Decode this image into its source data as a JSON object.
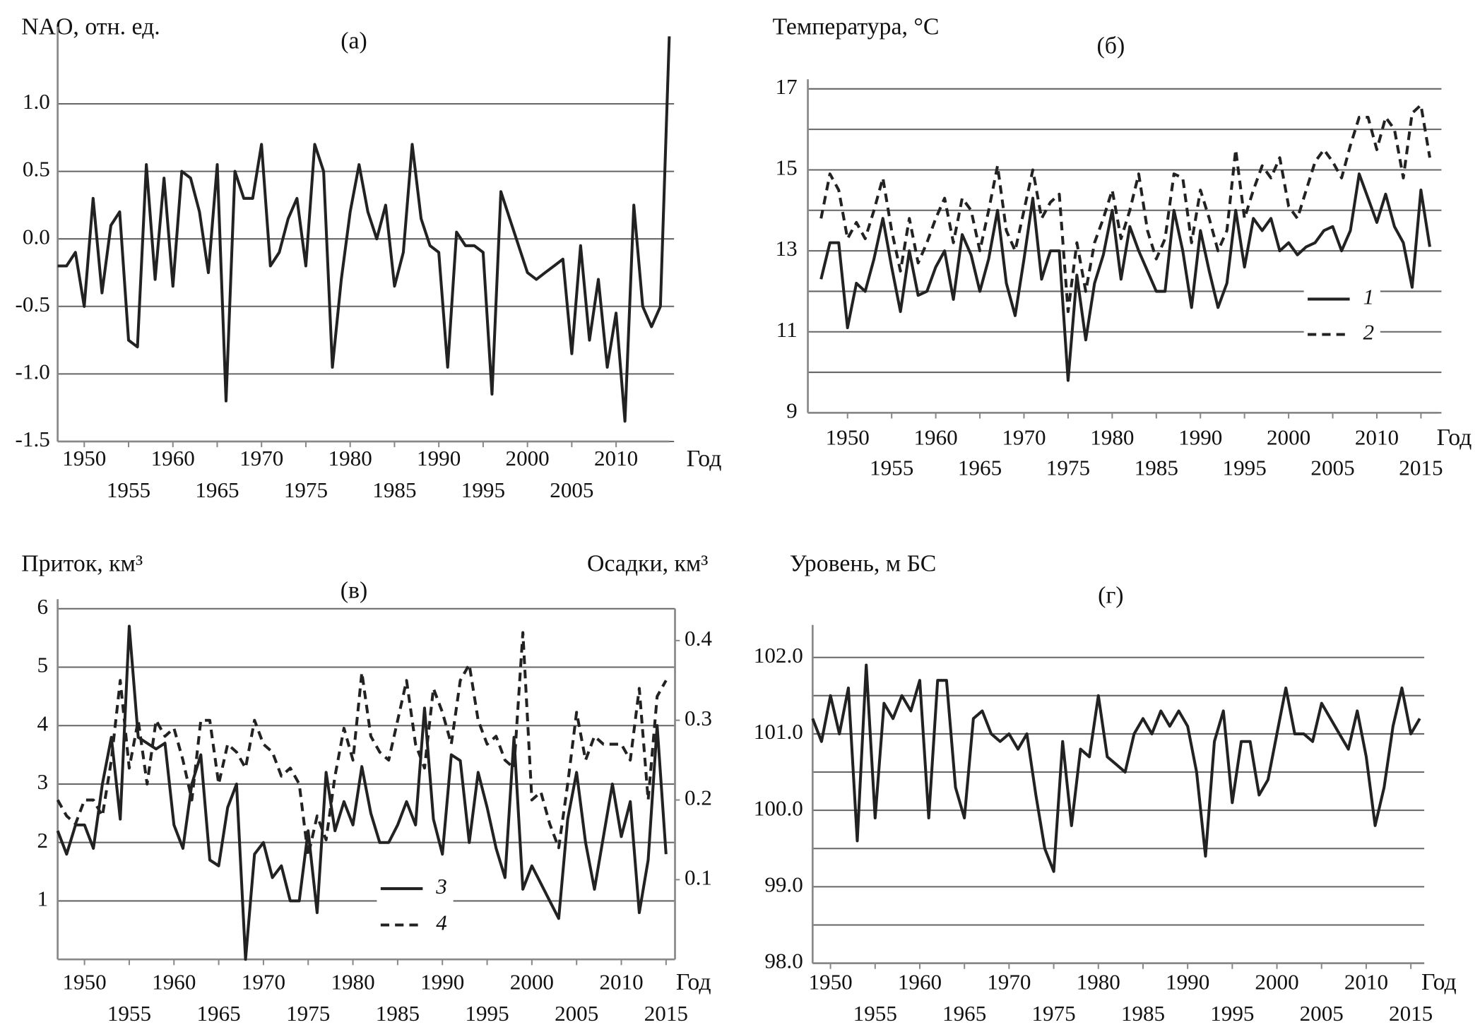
{
  "chart_data": [
    {
      "type": "line",
      "title": "(а)",
      "ylabel": "NAO, отн. ед.",
      "xlabel": "Год",
      "grid": true,
      "xlim": [
        1947,
        2016
      ],
      "xticks": [
        1950,
        1955,
        1960,
        1965,
        1970,
        1975,
        1980,
        1985,
        1990,
        1995,
        2000,
        2005,
        2010
      ],
      "ylim": [
        -1.5,
        1.5
      ],
      "yticks": [
        {
          "value": -1.5,
          "label": "-1.5"
        },
        {
          "value": -1.0,
          "label": "-1.0"
        },
        {
          "value": -0.5,
          "label": "-0.5"
        },
        {
          "value": 0.0,
          "label": "0.0"
        },
        {
          "value": 0.5,
          "label": "0.5"
        },
        {
          "value": 1.0,
          "label": "1.0"
        }
      ],
      "x": [
        1947,
        1948,
        1949,
        1950,
        1951,
        1952,
        1953,
        1954,
        1955,
        1956,
        1957,
        1958,
        1959,
        1960,
        1961,
        1962,
        1963,
        1964,
        1965,
        1966,
        1967,
        1968,
        1969,
        1970,
        1971,
        1972,
        1973,
        1974,
        1975,
        1976,
        1977,
        1978,
        1979,
        1980,
        1981,
        1982,
        1983,
        1984,
        1985,
        1986,
        1987,
        1988,
        1989,
        1990,
        1991,
        1992,
        1993,
        1994,
        1995,
        1996,
        1997,
        1998,
        1999,
        2000,
        2001,
        2002,
        2003,
        2004,
        2005,
        2006,
        2007,
        2008,
        2009,
        2010,
        2011,
        2012,
        2013,
        2014,
        2015,
        2016
      ],
      "series": [
        {
          "color": "#222222",
          "dash": false,
          "values": [
            -0.2,
            -0.2,
            -0.1,
            -0.5,
            0.3,
            -0.4,
            0.1,
            0.2,
            -0.75,
            -0.8,
            0.55,
            -0.3,
            0.45,
            -0.35,
            0.5,
            0.45,
            0.2,
            -0.25,
            0.55,
            -1.2,
            0.5,
            0.3,
            0.3,
            0.7,
            -0.2,
            -0.1,
            0.15,
            0.3,
            -0.2,
            0.7,
            0.5,
            -0.95,
            -0.3,
            0.2,
            0.55,
            0.2,
            0.0,
            0.25,
            -0.35,
            -0.1,
            0.7,
            0.15,
            -0.05,
            -0.1,
            -0.95,
            0.05,
            -0.05,
            -0.05,
            -0.1,
            -1.15,
            0.35,
            0.15,
            -0.05,
            -0.25,
            -0.3,
            -0.25,
            -0.2,
            -0.15,
            -0.85,
            -0.05,
            -0.75,
            -0.3,
            -0.95,
            -0.55,
            -1.35,
            0.25,
            -0.5,
            -0.65,
            -0.5,
            1.5
          ]
        }
      ]
    },
    {
      "type": "line",
      "title": "(б)",
      "ylabel": "Температура, °C",
      "xlabel": "Год",
      "grid": true,
      "xlim": [
        1945.5,
        2017
      ],
      "xticks": [
        1950,
        1955,
        1960,
        1965,
        1970,
        1975,
        1980,
        1985,
        1990,
        1995,
        2000,
        2005,
        2010,
        2015
      ],
      "ylim": [
        9,
        17
      ],
      "yticks": [
        9,
        11,
        13,
        15,
        17
      ],
      "minor_yticks": [
        10,
        12,
        14,
        16
      ],
      "x": [
        1947,
        1948,
        1949,
        1950,
        1951,
        1952,
        1953,
        1954,
        1955,
        1956,
        1957,
        1958,
        1959,
        1960,
        1961,
        1962,
        1963,
        1964,
        1965,
        1966,
        1967,
        1968,
        1969,
        1970,
        1971,
        1972,
        1973,
        1974,
        1975,
        1976,
        1977,
        1978,
        1979,
        1980,
        1981,
        1982,
        1983,
        1984,
        1985,
        1986,
        1987,
        1988,
        1989,
        1990,
        1991,
        1992,
        1993,
        1994,
        1995,
        1996,
        1997,
        1998,
        1999,
        2000,
        2001,
        2002,
        2003,
        2004,
        2005,
        2006,
        2007,
        2008,
        2009,
        2010,
        2011,
        2012,
        2013,
        2014,
        2015,
        2016
      ],
      "series": [
        {
          "name": "1",
          "color": "#222222",
          "dash": false,
          "values": [
            12.3,
            13.2,
            13.2,
            11.1,
            12.2,
            12.0,
            12.8,
            13.8,
            12.6,
            11.5,
            13.0,
            11.9,
            12.0,
            12.6,
            13.0,
            11.8,
            13.4,
            12.9,
            12.0,
            12.8,
            14.0,
            12.2,
            11.4,
            12.8,
            14.3,
            12.3,
            13.0,
            13.0,
            9.8,
            12.4,
            10.8,
            12.2,
            12.9,
            14.0,
            12.3,
            13.6,
            13.0,
            12.5,
            12.0,
            12.0,
            14.0,
            13.0,
            11.6,
            13.5,
            12.5,
            11.6,
            12.2,
            14.0,
            12.6,
            13.8,
            13.5,
            13.8,
            13.0,
            13.2,
            12.9,
            13.1,
            13.2,
            13.5,
            13.6,
            13.0,
            13.5,
            14.9,
            14.3,
            13.7,
            14.4,
            13.6,
            13.2,
            12.1,
            14.5,
            13.1
          ]
        },
        {
          "name": "2",
          "color": "#222222",
          "dash": true,
          "values": [
            13.8,
            14.9,
            14.5,
            13.3,
            13.7,
            13.3,
            14.0,
            14.8,
            13.5,
            12.5,
            13.8,
            12.7,
            13.2,
            13.8,
            14.3,
            13.2,
            14.3,
            14.0,
            13.0,
            14.0,
            15.1,
            13.5,
            13.0,
            14.0,
            15.0,
            13.8,
            14.2,
            14.4,
            11.5,
            13.2,
            12.0,
            13.2,
            13.8,
            14.5,
            13.3,
            14.0,
            14.9,
            13.5,
            12.8,
            13.3,
            14.9,
            14.8,
            13.2,
            14.5,
            13.8,
            13.0,
            13.5,
            15.5,
            13.8,
            14.5,
            15.1,
            14.8,
            15.3,
            14.1,
            13.8,
            14.5,
            15.2,
            15.5,
            15.2,
            14.8,
            15.6,
            16.3,
            16.3,
            15.5,
            16.3,
            16.0,
            14.8,
            16.4,
            16.6,
            15.3
          ]
        }
      ]
    },
    {
      "type": "line",
      "title": "(в)",
      "ylabel": "Приток, км³",
      "y2label": "Осадки, км³",
      "xlabel": "Год",
      "grid": true,
      "xlim": [
        1947,
        2016
      ],
      "xticks": [
        1950,
        1955,
        1960,
        1965,
        1970,
        1975,
        1980,
        1985,
        1990,
        1995,
        2000,
        2005,
        2010,
        2015
      ],
      "ylim": [
        0,
        6
      ],
      "yticks": [
        1,
        2,
        3,
        4,
        5,
        6
      ],
      "y2lim": [
        0,
        0.44
      ],
      "y2ticks": [
        0.1,
        0.2,
        0.3,
        0.4
      ],
      "x": [
        1947,
        1948,
        1949,
        1950,
        1951,
        1952,
        1953,
        1954,
        1955,
        1956,
        1957,
        1958,
        1959,
        1960,
        1961,
        1962,
        1963,
        1964,
        1965,
        1966,
        1967,
        1968,
        1969,
        1970,
        1971,
        1972,
        1973,
        1974,
        1975,
        1976,
        1977,
        1978,
        1979,
        1980,
        1981,
        1982,
        1983,
        1984,
        1985,
        1986,
        1987,
        1988,
        1989,
        1990,
        1991,
        1992,
        1993,
        1994,
        1995,
        1996,
        1997,
        1998,
        1999,
        2000,
        2001,
        2002,
        2003,
        2004,
        2005,
        2006,
        2007,
        2008,
        2009,
        2010,
        2011,
        2012,
        2013,
        2014,
        2015
      ],
      "series": [
        {
          "name": "3",
          "color": "#222222",
          "dash": false,
          "values": [
            2.2,
            1.8,
            2.3,
            2.3,
            1.9,
            3.0,
            3.8,
            2.4,
            5.7,
            3.8,
            3.7,
            3.6,
            3.7,
            2.3,
            1.9,
            3.0,
            3.5,
            1.7,
            1.6,
            2.6,
            3.0,
            0.0,
            1.8,
            2.0,
            1.4,
            1.6,
            1.0,
            1.0,
            2.2,
            0.8,
            3.2,
            2.2,
            2.7,
            2.3,
            3.3,
            2.5,
            2.0,
            2.0,
            2.3,
            2.7,
            2.3,
            4.3,
            2.4,
            1.8,
            3.5,
            3.4,
            2.0,
            3.2,
            2.6,
            1.9,
            1.4,
            3.8,
            1.2,
            1.6,
            1.3,
            1.0,
            0.7,
            2.4,
            3.2,
            2.0,
            1.2,
            2.1,
            3.0,
            2.1,
            2.7,
            0.8,
            1.7,
            4.0,
            1.8
          ]
        },
        {
          "name": "4",
          "color": "#222222",
          "dash": true,
          "axis": "y2",
          "values": [
            0.2,
            0.18,
            0.17,
            0.2,
            0.2,
            0.18,
            0.25,
            0.35,
            0.24,
            0.3,
            0.22,
            0.3,
            0.28,
            0.29,
            0.25,
            0.2,
            0.3,
            0.3,
            0.22,
            0.27,
            0.26,
            0.24,
            0.3,
            0.27,
            0.26,
            0.23,
            0.24,
            0.22,
            0.13,
            0.18,
            0.15,
            0.23,
            0.29,
            0.25,
            0.36,
            0.28,
            0.26,
            0.25,
            0.3,
            0.35,
            0.27,
            0.24,
            0.34,
            0.31,
            0.27,
            0.35,
            0.37,
            0.3,
            0.27,
            0.28,
            0.25,
            0.24,
            0.41,
            0.2,
            0.21,
            0.17,
            0.14,
            0.22,
            0.31,
            0.25,
            0.28,
            0.27,
            0.27,
            0.27,
            0.25,
            0.34,
            0.2,
            0.33,
            0.35
          ]
        }
      ]
    },
    {
      "type": "line",
      "title": "(г)",
      "ylabel": "Уровень, м БС",
      "xlabel": "Год",
      "grid": true,
      "xlim": [
        1948,
        2016.5
      ],
      "xticks": [
        1950,
        1955,
        1960,
        1965,
        1970,
        1975,
        1980,
        1985,
        1990,
        1995,
        2000,
        2005,
        2010,
        2015
      ],
      "ylim": [
        98,
        102.3
      ],
      "yticks": [
        {
          "value": 98,
          "label": "98.0"
        },
        {
          "value": 99,
          "label": "99.0"
        },
        {
          "value": 100,
          "label": "100.0"
        },
        {
          "value": 101,
          "label": "101.0"
        },
        {
          "value": 102,
          "label": "102.0"
        }
      ],
      "minor_yticks": [
        98.5,
        99.5,
        100.5,
        101.5
      ],
      "x": [
        1948,
        1949,
        1950,
        1951,
        1952,
        1953,
        1954,
        1955,
        1956,
        1957,
        1958,
        1959,
        1960,
        1961,
        1962,
        1963,
        1964,
        1965,
        1966,
        1967,
        1968,
        1969,
        1970,
        1971,
        1972,
        1973,
        1974,
        1975,
        1976,
        1977,
        1978,
        1979,
        1980,
        1981,
        1982,
        1983,
        1984,
        1985,
        1986,
        1987,
        1988,
        1989,
        1990,
        1991,
        1992,
        1993,
        1994,
        1995,
        1996,
        1997,
        1998,
        1999,
        2000,
        2001,
        2002,
        2003,
        2004,
        2005,
        2006,
        2007,
        2008,
        2009,
        2010,
        2011,
        2012,
        2013,
        2014,
        2015,
        2016
      ],
      "series": [
        {
          "color": "#222222",
          "dash": false,
          "values": [
            101.2,
            100.9,
            101.5,
            101.0,
            101.6,
            99.6,
            101.9,
            99.9,
            101.4,
            101.2,
            101.5,
            101.3,
            101.7,
            99.9,
            101.7,
            101.7,
            100.3,
            99.9,
            101.2,
            101.3,
            101.0,
            100.9,
            101.0,
            100.8,
            101.0,
            100.2,
            99.5,
            99.2,
            100.9,
            99.8,
            100.8,
            100.7,
            101.5,
            100.7,
            100.6,
            100.5,
            101.0,
            101.2,
            101.0,
            101.3,
            101.1,
            101.3,
            101.1,
            100.5,
            99.4,
            100.9,
            101.3,
            100.1,
            100.9,
            100.9,
            100.2,
            100.4,
            101.0,
            101.6,
            101.0,
            101.0,
            100.9,
            101.4,
            101.2,
            101.0,
            100.8,
            101.3,
            100.7,
            99.8,
            100.3,
            101.1,
            101.6,
            101.0,
            101.2
          ]
        }
      ]
    }
  ]
}
